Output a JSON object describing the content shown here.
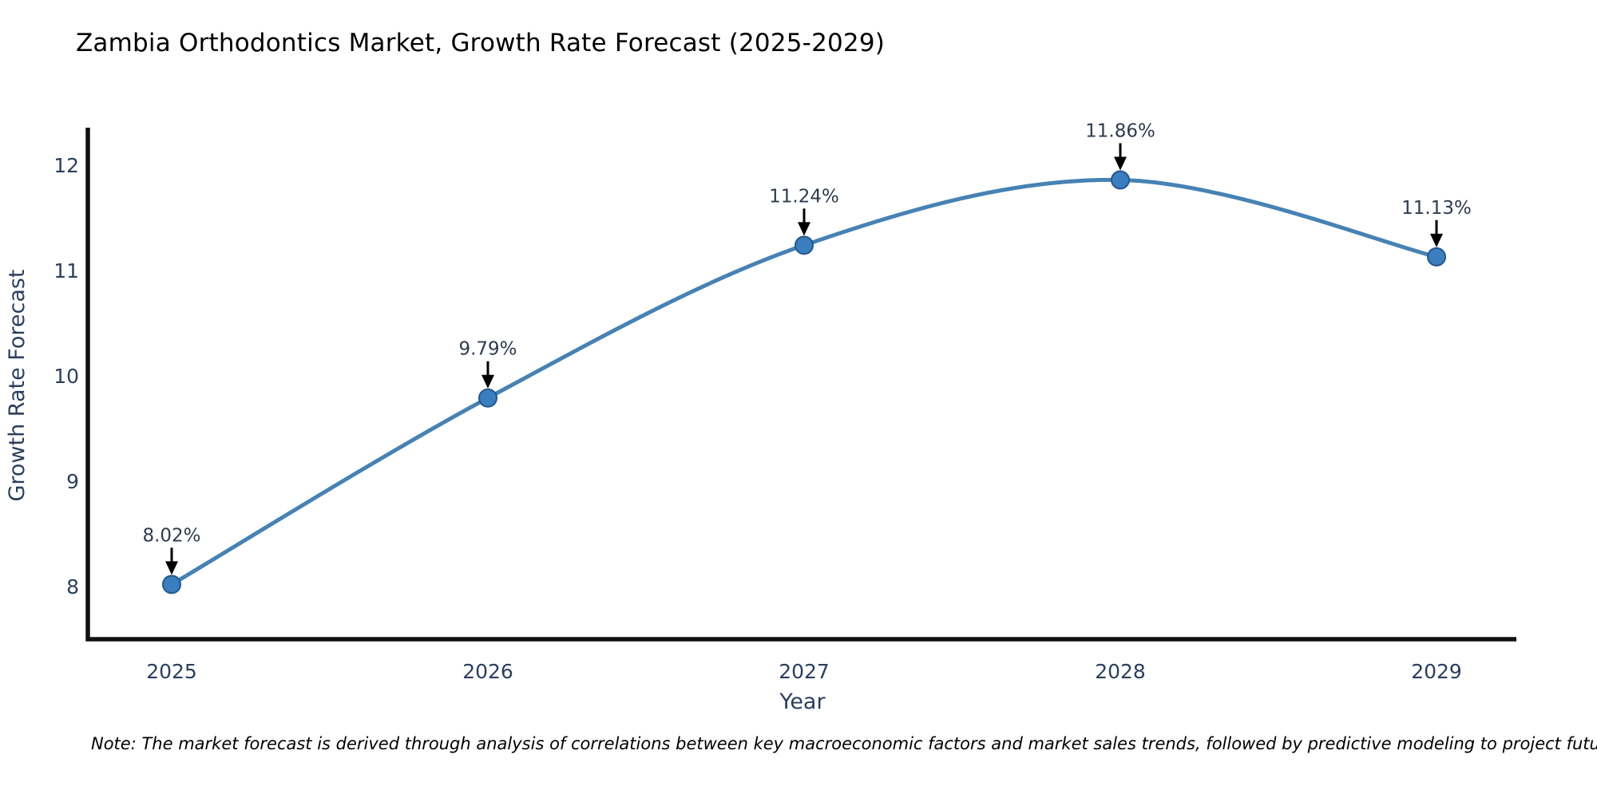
{
  "note": {
    "text": "Note: The market forecast is derived through analysis of correlations between key macroeconomic factors and market sales trends, followed by predictive modeling to project future sales."
  },
  "colors": {
    "line": "#4682b4",
    "marker_fill": "#3a7ebf",
    "marker_edge": "#24568f",
    "axis": "#111111",
    "chart_text": "#2a3f5f",
    "annotation_text": "#2e3b4e",
    "arrow": "#000000",
    "note_text": "#1f1f1f",
    "background": "#ffffff"
  },
  "chart_data": {
    "type": "line",
    "title": "Zambia Orthodontics Market, Growth Rate Forecast (2025-2029)",
    "xlabel": "Year",
    "ylabel": "Growth Rate Forecast",
    "x": [
      2025,
      2026,
      2027,
      2028,
      2029
    ],
    "values": [
      8.02,
      9.79,
      11.24,
      11.86,
      11.13
    ],
    "point_labels": [
      "8.02%",
      "9.79%",
      "11.24%",
      "11.86%",
      "11.13%"
    ],
    "yticks": [
      8,
      9,
      10,
      11,
      12
    ],
    "xticks": [
      2025,
      2026,
      2027,
      2028,
      2029
    ],
    "ylim": [
      7.5,
      12.36
    ],
    "xlim": [
      2024.73,
      2029.25
    ],
    "grid": false,
    "legend": null,
    "line_shape": "spline",
    "marker": "circle",
    "annotations": "value labels with downward arrows above each point"
  }
}
